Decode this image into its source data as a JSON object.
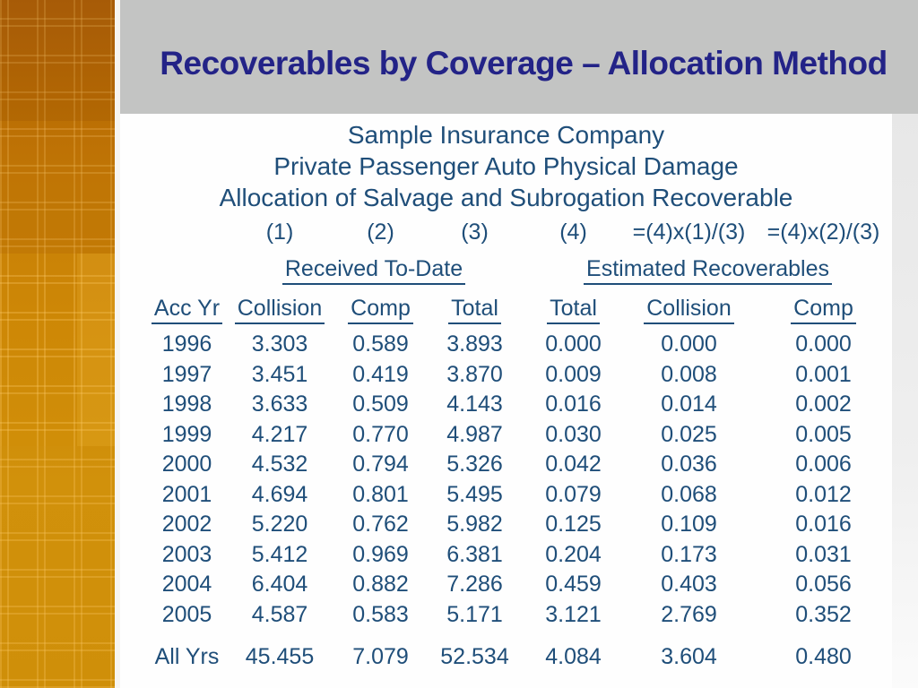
{
  "slide": {
    "title": "Recoverables by Coverage – Allocation Method",
    "heading_lines": [
      "Sample Insurance Company",
      "Private Passenger Auto Physical Damage",
      "Allocation of Salvage and Subrogation Recoverable"
    ]
  },
  "table": {
    "formula_row": [
      "",
      "(1)",
      "(2)",
      "(3)",
      "(4)",
      "=(4)x(1)/(3)",
      "=(4)x(2)/(3)"
    ],
    "group_headers": [
      {
        "label": "Received To-Date"
      },
      {
        "label": "Estimated Recoverables"
      }
    ],
    "column_headers": [
      "Acc Yr",
      "Collision",
      "Comp",
      "Total",
      "Total",
      "Collision",
      "Comp"
    ],
    "rows": [
      [
        "1996",
        "3.303",
        "0.589",
        "3.893",
        "0.000",
        "0.000",
        "0.000"
      ],
      [
        "1997",
        "3.451",
        "0.419",
        "3.870",
        "0.009",
        "0.008",
        "0.001"
      ],
      [
        "1998",
        "3.633",
        "0.509",
        "4.143",
        "0.016",
        "0.014",
        "0.002"
      ],
      [
        "1999",
        "4.217",
        "0.770",
        "4.987",
        "0.030",
        "0.025",
        "0.005"
      ],
      [
        "2000",
        "4.532",
        "0.794",
        "5.326",
        "0.042",
        "0.036",
        "0.006"
      ],
      [
        "2001",
        "4.694",
        "0.801",
        "5.495",
        "0.079",
        "0.068",
        "0.012"
      ],
      [
        "2002",
        "5.220",
        "0.762",
        "5.982",
        "0.125",
        "0.109",
        "0.016"
      ],
      [
        "2003",
        "5.412",
        "0.969",
        "6.381",
        "0.204",
        "0.173",
        "0.031"
      ],
      [
        "2004",
        "6.404",
        "0.882",
        "7.286",
        "0.459",
        "0.403",
        "0.056"
      ],
      [
        "2005",
        "4.587",
        "0.583",
        "5.171",
        "3.121",
        "2.769",
        "0.352"
      ]
    ],
    "total_row": [
      "All Yrs",
      "45.455",
      "7.079",
      "52.534",
      "4.084",
      "3.604",
      "0.480"
    ]
  },
  "colors": {
    "title_text": "#232387",
    "table_text": "#1F4E79",
    "band_gray": "#c3c4c3",
    "sidebar_orange": "#c97f06",
    "background_white": "#fefefe"
  }
}
